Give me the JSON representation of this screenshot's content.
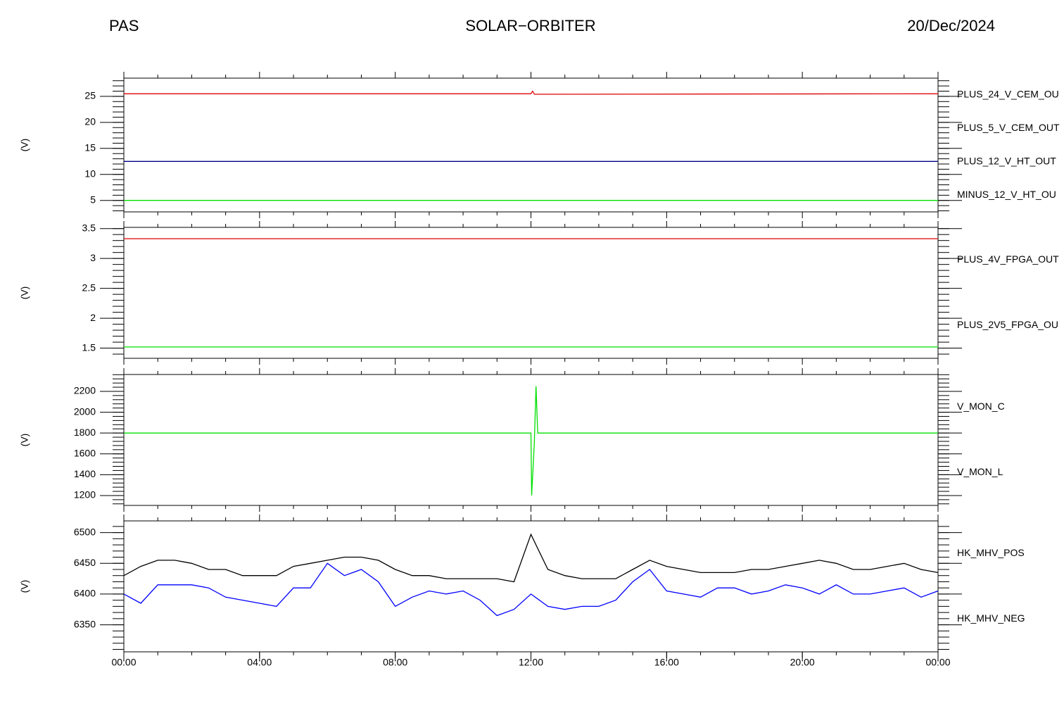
{
  "header": {
    "left": "PAS",
    "center": "SOLAR−ORBITER",
    "right": "20/Dec/2024"
  },
  "chart_data": [
    {
      "type": "line",
      "ylabel": "(V)",
      "xlim": [
        0,
        24
      ],
      "ylim": [
        2.8,
        28.5
      ],
      "yticks": [
        5,
        10,
        15,
        20,
        25
      ],
      "series": [
        {
          "name": "PLUS_24_V_CEM_OU",
          "color": "#e00000",
          "x": [
            0,
            12.0,
            12.05,
            12.1,
            24
          ],
          "values": [
            25.5,
            25.5,
            26.0,
            25.4,
            25.5
          ]
        },
        {
          "name": "PLUS_5_V_CEM_OUT",
          "color": "#00e000",
          "x": [
            0,
            24
          ],
          "values": [
            5.0,
            5.0
          ]
        },
        {
          "name": "PLUS_12_V_HT_OUT",
          "color": "#000080",
          "x": [
            0,
            24
          ],
          "values": [
            12.5,
            12.5
          ]
        },
        {
          "name": "MINUS_12_V_HT_OU",
          "color": "#000000",
          "x": [
            0,
            24
          ],
          "values": [
            null,
            null
          ]
        }
      ]
    },
    {
      "type": "line",
      "ylabel": "(V)",
      "xlim": [
        0,
        24
      ],
      "ylim": [
        1.33,
        3.52
      ],
      "yticks": [
        1.5,
        2.0,
        2.5,
        3.0,
        3.5
      ],
      "series": [
        {
          "name": "PLUS_4V_FPGA_OUT",
          "color": "#e00000",
          "x": [
            0,
            24
          ],
          "values": [
            3.33,
            3.33
          ]
        },
        {
          "name": "PLUS_2V5_FPGA_OU",
          "color": "#00e000",
          "x": [
            0,
            24
          ],
          "values": [
            1.52,
            1.52
          ]
        }
      ]
    },
    {
      "type": "line",
      "ylabel": "(V)",
      "xlim": [
        0,
        24
      ],
      "ylim": [
        1105,
        2362
      ],
      "yticks": [
        1200,
        1400,
        1600,
        1800,
        2000,
        2200
      ],
      "series": [
        {
          "name": "V_MON_C",
          "color": "#e00000",
          "x": [
            0,
            24
          ],
          "values": [
            null,
            null
          ]
        },
        {
          "name": "V_MON_L",
          "color": "#00e000",
          "x": [
            0,
            12.0,
            12.02,
            12.1,
            12.15,
            12.2,
            24
          ],
          "values": [
            1800,
            1800,
            1200,
            1700,
            2250,
            1800,
            1800
          ]
        }
      ]
    },
    {
      "type": "line",
      "ylabel": "(V)",
      "xlim": [
        0,
        24
      ],
      "ylim": [
        6306,
        6519
      ],
      "yticks": [
        6350,
        6400,
        6450,
        6500
      ],
      "xticks": [
        {
          "value": 0,
          "label": "00:00"
        },
        {
          "value": 4,
          "label": "04:00"
        },
        {
          "value": 8,
          "label": "08:00"
        },
        {
          "value": 12,
          "label": "12:00"
        },
        {
          "value": 16,
          "label": "16:00"
        },
        {
          "value": 20,
          "label": "20:00"
        },
        {
          "value": 24,
          "label": "00:00"
        }
      ],
      "series": [
        {
          "name": "HK_MHV_POS",
          "color": "#000000",
          "x": [
            0,
            0.5,
            1,
            1.5,
            2,
            2.5,
            3,
            3.5,
            4,
            4.5,
            5,
            5.5,
            6,
            6.5,
            7,
            7.5,
            8,
            8.5,
            9,
            9.5,
            10,
            10.5,
            11,
            11.5,
            12,
            12.5,
            13,
            13.5,
            14,
            14.5,
            15,
            15.5,
            16,
            16.5,
            17,
            17.5,
            18,
            18.5,
            19,
            19.5,
            20,
            20.5,
            21,
            21.5,
            22,
            22.5,
            23,
            23.5,
            24
          ],
          "values": [
            6430,
            6445,
            6455,
            6455,
            6450,
            6440,
            6440,
            6430,
            6430,
            6430,
            6445,
            6450,
            6455,
            6460,
            6460,
            6455,
            6440,
            6430,
            6430,
            6425,
            6425,
            6425,
            6425,
            6420,
            6497,
            6440,
            6430,
            6425,
            6425,
            6425,
            6440,
            6455,
            6445,
            6440,
            6435,
            6435,
            6435,
            6440,
            6440,
            6445,
            6450,
            6455,
            6450,
            6440,
            6440,
            6445,
            6450,
            6440,
            6435
          ]
        },
        {
          "name": "HK_MHV_NEG",
          "color": "#0000ff",
          "x": [
            0,
            0.5,
            1,
            1.5,
            2,
            2.5,
            3,
            3.5,
            4,
            4.5,
            5,
            5.5,
            6,
            6.5,
            7,
            7.5,
            8,
            8.5,
            9,
            9.5,
            10,
            10.5,
            11,
            11.5,
            12,
            12.5,
            13,
            13.5,
            14,
            14.5,
            15,
            15.5,
            16,
            16.5,
            17,
            17.5,
            18,
            18.5,
            19,
            19.5,
            20,
            20.5,
            21,
            21.5,
            22,
            22.5,
            23,
            23.5,
            24
          ],
          "values": [
            6400,
            6385,
            6415,
            6415,
            6415,
            6410,
            6395,
            6390,
            6385,
            6380,
            6410,
            6410,
            6450,
            6430,
            6440,
            6420,
            6380,
            6395,
            6405,
            6400,
            6405,
            6390,
            6365,
            6375,
            6400,
            6380,
            6375,
            6380,
            6380,
            6390,
            6420,
            6440,
            6405,
            6400,
            6395,
            6410,
            6410,
            6400,
            6405,
            6415,
            6410,
            6400,
            6415,
            6400,
            6400,
            6405,
            6410,
            6395,
            6405
          ]
        }
      ]
    }
  ]
}
